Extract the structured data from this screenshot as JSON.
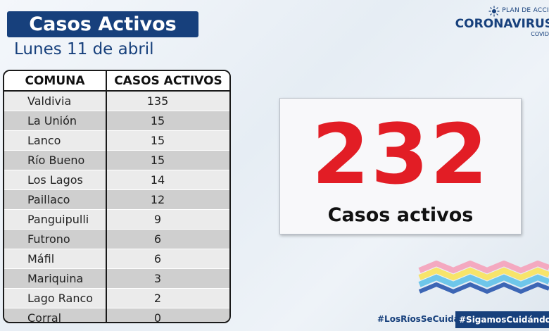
{
  "header": {
    "title": "Casos Activos",
    "date": "Lunes 11 de abril"
  },
  "logo": {
    "plan_text": "PLAN DE ACCI",
    "main_text": "CORONAVIRUS",
    "sub_text": "COVID"
  },
  "table": {
    "headers": [
      "COMUNA",
      "CASOS ACTIVOS"
    ],
    "rows": [
      {
        "comuna": "Valdivia",
        "casos": "135"
      },
      {
        "comuna": "La Unión",
        "casos": "15"
      },
      {
        "comuna": "Lanco",
        "casos": "15"
      },
      {
        "comuna": "Río Bueno",
        "casos": "15"
      },
      {
        "comuna": "Los Lagos",
        "casos": "14"
      },
      {
        "comuna": "Paillaco",
        "casos": "12"
      },
      {
        "comuna": "Panguipulli",
        "casos": "9"
      },
      {
        "comuna": "Futrono",
        "casos": "6"
      },
      {
        "comuna": "Máfil",
        "casos": "6"
      },
      {
        "comuna": "Mariquina",
        "casos": "3"
      },
      {
        "comuna": "Lago Ranco",
        "casos": "2"
      },
      {
        "comuna": "Corral",
        "casos": "0"
      }
    ]
  },
  "total": {
    "value": "232",
    "label": "Casos activos"
  },
  "footer": {
    "hashtag_1": "#LosRíosSeCuida",
    "hashtag_2": "#SigamosCuidándonos"
  },
  "colors": {
    "brand_blue": "#17407c",
    "accent_red": "#e21d25"
  },
  "icons": {
    "logo_burst": "sun-burst-icon",
    "decoration": "zigzag-stripes-icon"
  }
}
